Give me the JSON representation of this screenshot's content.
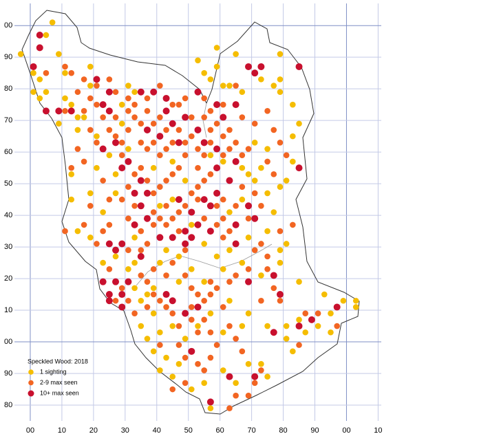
{
  "chart_data": {
    "type": "scatter",
    "legend_title": "Speckled Wood:  2018",
    "xlim": [
      -5,
      111
    ],
    "ylim": [
      -25,
      107
    ],
    "xticks": [
      {
        "value": 0,
        "label": "00"
      },
      10,
      20,
      30,
      40,
      50,
      60,
      70,
      80,
      90,
      {
        "value": 100,
        "label": "00"
      },
      {
        "value": 110,
        "label": "10"
      }
    ],
    "yticks": [
      {
        "value": -20,
        "label": "80"
      },
      {
        "value": -10,
        "label": "90"
      },
      {
        "value": 0,
        "label": "00"
      },
      10,
      20,
      30,
      40,
      50,
      60,
      70,
      80,
      90,
      {
        "value": 100,
        "label": "00"
      }
    ],
    "grid": true,
    "series": [
      {
        "name": "1 sighting",
        "color": "#f5bd00",
        "x": [
          -3,
          7,
          5,
          1,
          3,
          1,
          3,
          5,
          9,
          11,
          11,
          9,
          13,
          15,
          19,
          19,
          17,
          15,
          13,
          13,
          15,
          19,
          19,
          21,
          23,
          27,
          23,
          27,
          31,
          33,
          33,
          35,
          37,
          39,
          35,
          37,
          41,
          39,
          41,
          43,
          45,
          47,
          51,
          55,
          57,
          61,
          65,
          69,
          73,
          75,
          75,
          81,
          83,
          81,
          85,
          87,
          91,
          93,
          95,
          95,
          99,
          103,
          103,
          85,
          73,
          79,
          79,
          81,
          75,
          77,
          79,
          81,
          83,
          83,
          85,
          83,
          79,
          79,
          79,
          77,
          73,
          67,
          65,
          59,
          59,
          57,
          61,
          55,
          53,
          63,
          69,
          71,
          73,
          75,
          63,
          61,
          55,
          51,
          47,
          47,
          43,
          41,
          39,
          45,
          49,
          53,
          57,
          61,
          63,
          67,
          69,
          29,
          31,
          33,
          29,
          25,
          21,
          27,
          31,
          39,
          45,
          49,
          57,
          61,
          67,
          71,
          75,
          63,
          67,
          69,
          67,
          59,
          55,
          51,
          45,
          41,
          33
        ],
        "values": [
          91,
          101,
          97,
          85,
          83,
          79,
          77,
          79,
          91,
          85,
          77,
          69,
          75,
          71,
          87,
          81,
          71,
          67,
          53,
          45,
          35,
          33,
          47,
          55,
          41,
          47,
          25,
          27,
          23,
          25,
          17,
          13,
          15,
          9,
          5,
          1,
          3,
          -3,
          -9,
          -5,
          -11,
          -7,
          -15,
          -13,
          -21,
          -9,
          -13,
          -7,
          -7,
          -11,
          5,
          1,
          -3,
          5,
          7,
          3,
          5,
          15,
          9,
          3,
          13,
          13,
          11,
          19,
          21,
          25,
          29,
          31,
          35,
          41,
          49,
          51,
          57,
          65,
          69,
          75,
          79,
          83,
          91,
          81,
          83,
          79,
          91,
          93,
          87,
          83,
          81,
          85,
          89,
          81,
          53,
          51,
          55,
          47,
          29,
          23,
          19,
          23,
          19,
          27,
          29,
          25,
          17,
          5,
          1,
          5,
          9,
          3,
          13,
          5,
          9,
          75,
          81,
          79,
          69,
          59,
          65,
          53,
          61,
          55,
          57,
          51,
          59,
          57,
          55,
          63,
          61,
          41,
          45,
          33,
          25,
          27,
          31,
          37,
          45,
          43,
          33
        ]
      },
      {
        "name": "2-9 max seen",
        "color": "#f26522",
        "x": [
          5,
          11,
          13,
          21,
          17,
          19,
          15,
          11,
          17,
          21,
          23,
          19,
          21,
          15,
          17,
          13,
          11,
          17,
          23,
          21,
          19,
          25,
          25,
          27,
          25,
          29,
          29,
          31,
          31,
          33,
          33,
          35,
          35,
          37,
          37,
          39,
          39,
          41,
          41,
          43,
          43,
          45,
          45,
          47,
          47,
          49,
          51,
          51,
          53,
          53,
          55,
          55,
          57,
          57,
          59,
          61,
          61,
          63,
          63,
          65,
          67,
          67,
          69,
          49,
          47,
          45,
          43,
          41,
          39,
          37,
          35,
          33,
          31,
          33,
          31,
          29,
          35,
          37,
          39,
          39,
          41,
          43,
          43,
          45,
          47,
          47,
          49,
          51,
          53,
          53,
          55,
          55,
          57,
          59,
          59,
          61,
          61,
          61,
          63,
          65,
          67,
          69,
          71,
          73,
          75,
          71,
          69,
          65,
          63,
          59,
          57,
          55,
          53,
          51,
          51,
          53,
          55,
          57,
          59,
          57,
          55,
          53,
          49,
          47,
          47,
          45,
          43,
          41,
          39,
          37,
          37,
          35,
          31,
          29,
          27,
          31,
          35,
          39,
          43,
          45,
          49,
          49,
          51,
          57,
          61,
          63,
          65,
          67,
          63,
          71,
          85,
          87,
          91,
          97,
          73,
          77,
          75,
          79,
          83,
          79,
          73,
          77,
          75,
          79,
          81,
          71,
          75,
          77,
          65,
          61,
          57,
          55,
          49,
          41,
          37,
          31,
          27,
          25,
          27,
          29,
          23,
          25,
          33,
          41,
          45,
          49,
          65,
          69,
          73
        ],
        "values": [
          85,
          87,
          85,
          81,
          83,
          77,
          79,
          73,
          73,
          75,
          71,
          67,
          63,
          61,
          57,
          55,
          35,
          37,
          35,
          31,
          43,
          45,
          37,
          65,
          67,
          63,
          59,
          67,
          73,
          75,
          71,
          69,
          63,
          61,
          73,
          69,
          63,
          71,
          59,
          61,
          67,
          75,
          63,
          75,
          67,
          63,
          71,
          65,
          61,
          55,
          71,
          59,
          67,
          63,
          69,
          65,
          59,
          67,
          61,
          63,
          71,
          59,
          61,
          59,
          55,
          53,
          51,
          49,
          47,
          51,
          55,
          53,
          49,
          43,
          39,
          45,
          35,
          31,
          37,
          41,
          39,
          43,
          37,
          39,
          41,
          35,
          43,
          47,
          45,
          49,
          51,
          39,
          53,
          43,
          37,
          45,
          39,
          33,
          35,
          43,
          49,
          39,
          47,
          31,
          27,
          29,
          23,
          21,
          19,
          17,
          15,
          13,
          15,
          11,
          7,
          3,
          7,
          3,
          -1,
          -5,
          -9,
          -7,
          -5,
          -1,
          5,
          9,
          11,
          13,
          15,
          11,
          19,
          21,
          13,
          17,
          13,
          29,
          29,
          23,
          21,
          25,
          29,
          21,
          17,
          19,
          11,
          5,
          1,
          -3,
          -21,
          -13,
          -1,
          9,
          9,
          5,
          13,
          17,
          23,
          13,
          37,
          35,
          43,
          53,
          57,
          63,
          59,
          69,
          73,
          67,
          81,
          75,
          73,
          77,
          77,
          81,
          77,
          77,
          79,
          83,
          71,
          55,
          51,
          23,
          9,
          -1,
          -15,
          -13,
          -17,
          -17,
          -9
        ]
      },
      {
        "name": "10+ max seen",
        "color": "#c8102e",
        "x": [
          1,
          3,
          3,
          5,
          9,
          13,
          21,
          23,
          25,
          25,
          27,
          23,
          31,
          29,
          35,
          39,
          43,
          43,
          45,
          37,
          41,
          49,
          47,
          53,
          55,
          59,
          59,
          35,
          33,
          37,
          35,
          33,
          37,
          41,
          45,
          49,
          49,
          51,
          53,
          51,
          57,
          55,
          59,
          65,
          65,
          69,
          71,
          71,
          69,
          73,
          85,
          59,
          61,
          65,
          53,
          65,
          85,
          63,
          47,
          23,
          25,
          27,
          29,
          31,
          29,
          25,
          43,
          45,
          53,
          49,
          27,
          29,
          25,
          77,
          69,
          79,
          77,
          71,
          97,
          89,
          85,
          63,
          51,
          57,
          35,
          57
        ],
        "values": [
          87,
          97,
          93,
          73,
          73,
          73,
          83,
          75,
          79,
          73,
          63,
          61,
          57,
          55,
          79,
          79,
          77,
          73,
          69,
          67,
          65,
          71,
          63,
          67,
          63,
          61,
          55,
          51,
          47,
          47,
          43,
          37,
          39,
          33,
          33,
          35,
          31,
          33,
          37,
          41,
          43,
          45,
          47,
          37,
          31,
          43,
          39,
          85,
          87,
          87,
          87,
          75,
          71,
          75,
          79,
          57,
          55,
          51,
          45,
          19,
          15,
          19,
          15,
          19,
          11,
          13,
          15,
          13,
          11,
          9,
          29,
          31,
          31,
          21,
          19,
          15,
          3,
          -11,
          11,
          7,
          5,
          -11,
          -3,
          35,
          27,
          -19
        ]
      }
    ]
  }
}
